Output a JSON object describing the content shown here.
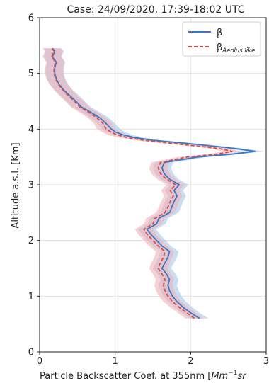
{
  "chart_data": {
    "type": "line",
    "title": "Case: 24/09/2020, 17:39-18:02 UTC",
    "ylabel": "Altitude a.s.l. [Km]",
    "xlabel_main": "Particle Backscatter Coef. at 355nm [",
    "xlabel_unit_1": "Mm",
    "xlabel_exp": "−1",
    "xlabel_unit_2": "sr",
    "xlim": [
      0,
      3
    ],
    "ylim": [
      0,
      6
    ],
    "x_ticks": [
      "0",
      "1",
      "2",
      "3"
    ],
    "y_ticks": [
      "0",
      "1",
      "2",
      "3",
      "4",
      "5",
      "6"
    ],
    "grid": true,
    "legend_position": "top-right",
    "series": [
      {
        "name": "β",
        "name_sub": "",
        "color": "#3b78c4",
        "band_color": "#a9c6e8",
        "style": "solid",
        "y": [
          0.6,
          0.7,
          0.8,
          0.9,
          1.0,
          1.1,
          1.2,
          1.3,
          1.4,
          1.5,
          1.6,
          1.7,
          1.8,
          1.9,
          2.0,
          2.1,
          2.2,
          2.3,
          2.4,
          2.5,
          2.6,
          2.7,
          2.8,
          2.9,
          3.0,
          3.1,
          3.2,
          3.3,
          3.4,
          3.5,
          3.55,
          3.6,
          3.65,
          3.7,
          3.75,
          3.8,
          3.85,
          3.9,
          3.95,
          4.0,
          4.1,
          4.2,
          4.3,
          4.4,
          4.5,
          4.6,
          4.7,
          4.8,
          4.9,
          5.0,
          5.1,
          5.2,
          5.3,
          5.4,
          5.45
        ],
        "x": [
          2.12,
          2.0,
          1.9,
          1.82,
          1.76,
          1.72,
          1.7,
          1.72,
          1.68,
          1.62,
          1.66,
          1.7,
          1.72,
          1.62,
          1.55,
          1.48,
          1.42,
          1.55,
          1.58,
          1.72,
          1.75,
          1.78,
          1.82,
          1.78,
          1.85,
          1.72,
          1.65,
          1.62,
          1.65,
          2.1,
          2.55,
          2.85,
          2.6,
          2.25,
          1.9,
          1.5,
          1.25,
          1.1,
          1.0,
          0.95,
          0.88,
          0.8,
          0.68,
          0.55,
          0.48,
          0.4,
          0.32,
          0.26,
          0.22,
          0.2,
          0.2,
          0.22,
          0.17,
          0.2,
          0.17
        ]
      },
      {
        "name": "β",
        "name_sub": "Aeolus like",
        "color": "#d94a4a",
        "band_color": "#efb3b8",
        "style": "dashed",
        "y": [
          0.6,
          0.7,
          0.8,
          0.9,
          1.0,
          1.1,
          1.2,
          1.3,
          1.4,
          1.5,
          1.6,
          1.7,
          1.8,
          1.9,
          2.0,
          2.1,
          2.2,
          2.3,
          2.4,
          2.5,
          2.6,
          2.7,
          2.8,
          2.9,
          3.0,
          3.1,
          3.2,
          3.3,
          3.4,
          3.5,
          3.55,
          3.6,
          3.65,
          3.7,
          3.75,
          3.8,
          3.85,
          3.9,
          3.95,
          4.0,
          4.1,
          4.2,
          4.3,
          4.4,
          4.5,
          4.6,
          4.7,
          4.8,
          4.9,
          5.0,
          5.1,
          5.2,
          5.3,
          5.4,
          5.45
        ],
        "x": [
          2.05,
          1.95,
          1.85,
          1.76,
          1.7,
          1.66,
          1.64,
          1.66,
          1.62,
          1.57,
          1.6,
          1.64,
          1.66,
          1.57,
          1.5,
          1.43,
          1.38,
          1.5,
          1.53,
          1.66,
          1.7,
          1.73,
          1.77,
          1.73,
          1.8,
          1.68,
          1.6,
          1.57,
          1.6,
          1.95,
          2.35,
          2.55,
          2.38,
          2.05,
          1.72,
          1.38,
          1.15,
          1.02,
          0.94,
          0.88,
          0.84,
          0.76,
          0.65,
          0.53,
          0.46,
          0.38,
          0.31,
          0.25,
          0.21,
          0.19,
          0.19,
          0.21,
          0.16,
          0.19,
          0.16
        ]
      }
    ],
    "uncertainty": 0.12
  }
}
